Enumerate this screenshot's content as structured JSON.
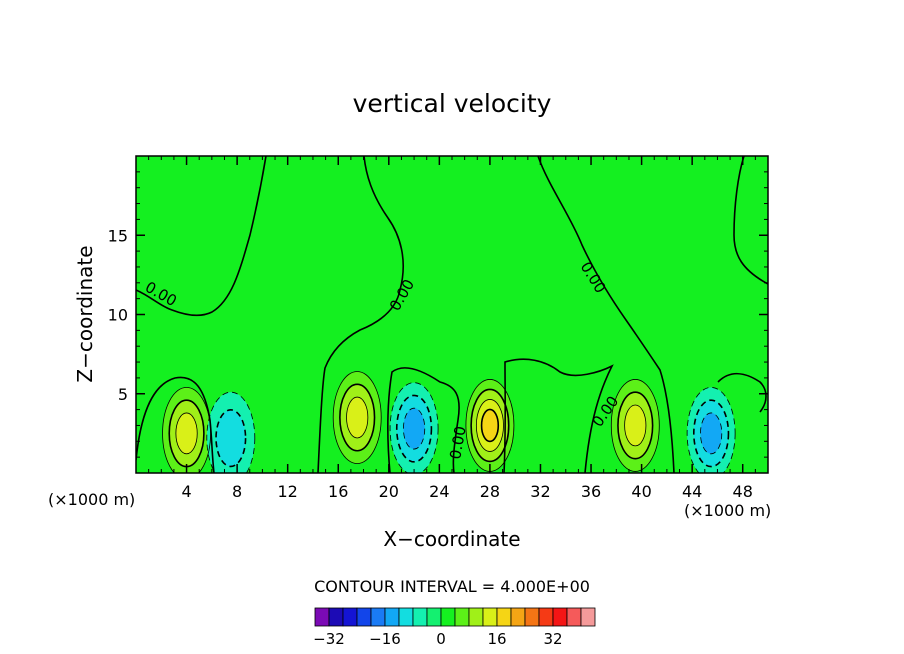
{
  "chart_data": {
    "type": "contour",
    "title": "vertical velocity",
    "xlabel": "X−coordinate",
    "ylabel": "Z−coordinate",
    "x_unit_left": "(×1000 m)",
    "x_unit_right": "(×1000 m)",
    "xlim": [
      0,
      50
    ],
    "ylim": [
      0,
      20
    ],
    "xticks": [
      4,
      8,
      12,
      16,
      20,
      24,
      28,
      32,
      36,
      40,
      44,
      48
    ],
    "yticks": [
      5,
      10,
      15
    ],
    "contour_interval_text": "CONTOUR INTERVAL = 4.000E+00",
    "contour_labels": [
      "0.00",
      "0.00",
      "0.00",
      "0.00",
      "0.00"
    ],
    "colorbar": {
      "levels_min": -36,
      "levels_step": 4,
      "colors": [
        "#7b0ab5",
        "#1c0bb5",
        "#1414d4",
        "#1245ea",
        "#1a7bf5",
        "#12a8f5",
        "#13dde0",
        "#14f0b0",
        "#14f070",
        "#15f020",
        "#5cf018",
        "#a0f018",
        "#d9f018",
        "#f5d515",
        "#f5a515",
        "#f57515",
        "#f53a15",
        "#f51515",
        "#f55a5a",
        "#f59a9a"
      ],
      "tick_values": [
        -32,
        -16,
        0,
        16,
        32
      ],
      "tick_labels": [
        "−32",
        "−16",
        "0",
        "16",
        "32"
      ]
    },
    "cells": [
      {
        "x": 4,
        "z": 2.5,
        "peak": 12,
        "sign": "positive"
      },
      {
        "x": 7.5,
        "z": 2.2,
        "peak": -8,
        "sign": "negative"
      },
      {
        "x": 17.5,
        "z": 3.5,
        "peak": 12,
        "sign": "positive"
      },
      {
        "x": 22,
        "z": 2.8,
        "peak": -12,
        "sign": "negative"
      },
      {
        "x": 28,
        "z": 3,
        "peak": 16,
        "sign": "positive"
      },
      {
        "x": 39.5,
        "z": 3,
        "peak": 12,
        "sign": "positive"
      },
      {
        "x": 45.5,
        "z": 2.5,
        "peak": -12,
        "sign": "negative"
      }
    ],
    "grid": false
  }
}
